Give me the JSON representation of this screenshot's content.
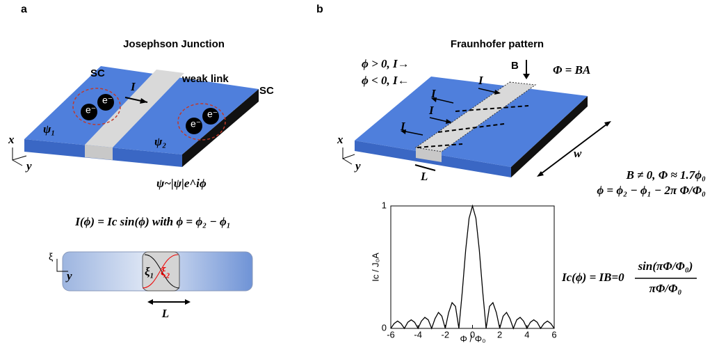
{
  "panel_a": {
    "label": "a",
    "title": "Josephson Junction",
    "sc_left": "SC",
    "weak_link": "weak link",
    "sc_right": "SC",
    "current": "I",
    "electrons": [
      "e⁻",
      "e⁻",
      "e⁻",
      "e⁻"
    ],
    "psi1": "ψ₁",
    "psi2": "ψ₂",
    "axis_x": "x",
    "axis_y": "y",
    "wavefunction": "ψ~|ψ|e^iϕ",
    "relation": "I(ϕ) = Ic sin(ϕ)  with  ϕ = ϕ₂ − ϕ₁",
    "bottom": {
      "axis_xi": "ξ",
      "axis_y": "y",
      "xi1": "ξ₁",
      "xi2": "ξ₂",
      "length": "L"
    }
  },
  "panel_b": {
    "label": "b",
    "title": "Fraunhofer pattern",
    "cond_pos": "ϕ > 0, I→",
    "cond_neg": "ϕ < 0, I←",
    "field": "B",
    "flux": "Φ = BA",
    "currents": [
      "I",
      "I",
      "I",
      "I"
    ],
    "axis_x": "x",
    "axis_y": "y",
    "length": "L",
    "width": "w",
    "condition": "B ≠ 0, Φ ≈ 1.7ϕ₀",
    "phase": "ϕ = ϕ₂ − ϕ₁ − 2π Φ/Φ₀",
    "formula_lhs": "Ic(ϕ) = IB=0",
    "formula_num": "sin(πΦ/Φ₀)",
    "formula_den": "πΦ/Φ₀"
  },
  "chart_data": {
    "type": "line",
    "x_label": "Φ / Φ₀",
    "y_label": "Ic / J₀A",
    "x": [
      -6,
      -5.75,
      -5.5,
      -5.25,
      -5,
      -4.75,
      -4.5,
      -4.25,
      -4,
      -3.75,
      -3.5,
      -3.25,
      -3,
      -2.75,
      -2.5,
      -2.25,
      -2,
      -1.75,
      -1.5,
      -1.25,
      -1,
      -0.75,
      -0.5,
      -0.25,
      0,
      0.25,
      0.5,
      0.75,
      1,
      1.25,
      1.5,
      1.75,
      2,
      2.25,
      2.5,
      2.75,
      3,
      3.25,
      3.5,
      3.75,
      4,
      4.25,
      4.5,
      4.75,
      5,
      5.25,
      5.5,
      5.75,
      6
    ],
    "values": [
      0,
      0.04,
      0.06,
      0.04,
      0,
      0.05,
      0.07,
      0.05,
      0,
      0.06,
      0.09,
      0.07,
      0,
      0.08,
      0.13,
      0.1,
      0,
      0.13,
      0.21,
      0.18,
      0,
      0.3,
      0.64,
      0.9,
      1,
      0.9,
      0.64,
      0.3,
      0,
      0.18,
      0.21,
      0.13,
      0,
      0.1,
      0.13,
      0.08,
      0,
      0.07,
      0.09,
      0.06,
      0,
      0.05,
      0.07,
      0.05,
      0,
      0.04,
      0.06,
      0.04,
      0
    ],
    "color": "#000000",
    "xlim": [
      -6,
      6
    ],
    "ylim": [
      0,
      1
    ],
    "xticks": [
      -6,
      -4,
      -2,
      0,
      2,
      4,
      6
    ],
    "yticks": [
      0,
      1
    ]
  }
}
